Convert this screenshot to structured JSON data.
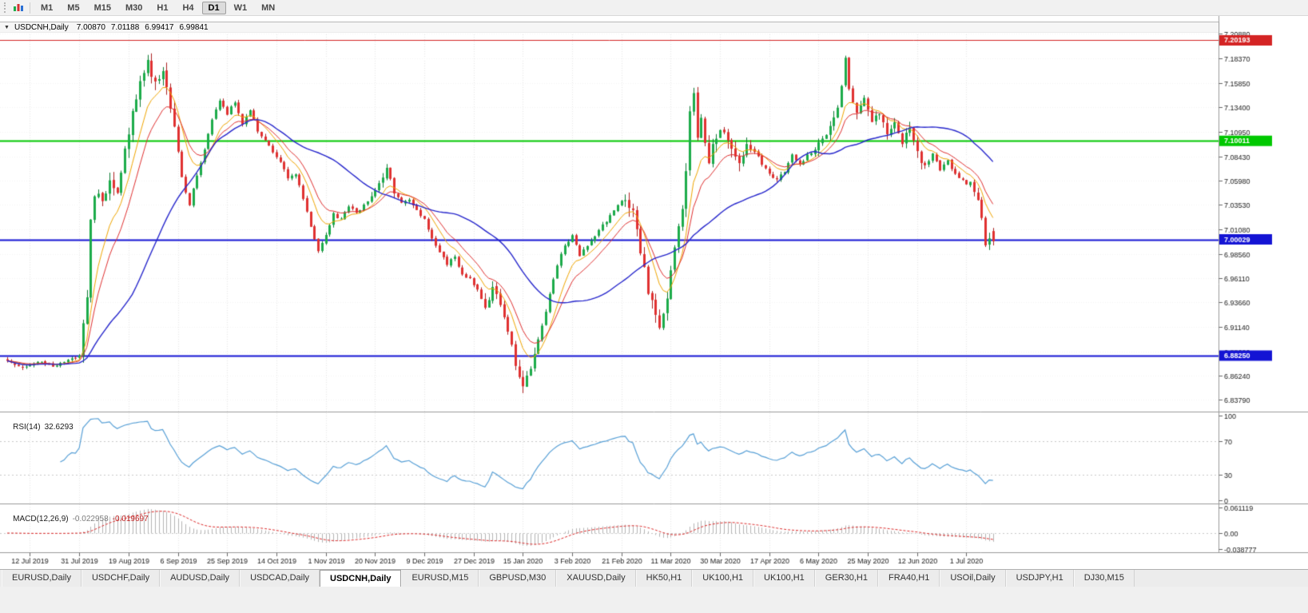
{
  "toolbar": {
    "periods": [
      {
        "label": "M1"
      },
      {
        "label": "M5"
      },
      {
        "label": "M15"
      },
      {
        "label": "M30"
      },
      {
        "label": "H1"
      },
      {
        "label": "H4"
      },
      {
        "label": "D1"
      },
      {
        "label": "W1"
      },
      {
        "label": "MN"
      }
    ],
    "active_period": "D1"
  },
  "chart": {
    "title": {
      "collapse_icon": "▼",
      "symbol": "USDCNH,Daily",
      "open": "7.00870",
      "high": "7.01188",
      "low": "6.99417",
      "close": "6.99841"
    },
    "y_axis_ticks": [
      "7.20880",
      "7.18370",
      "7.15850",
      "7.13400",
      "7.10950",
      "7.08430",
      "7.05980",
      "7.03530",
      "7.01080",
      "6.98560",
      "6.96110",
      "6.93660",
      "6.91140",
      "6.88690",
      "6.86240",
      "6.83790"
    ],
    "price_levels": [
      {
        "label": "7.20193",
        "value": 7.20193,
        "color": "#d42424",
        "width": 1
      },
      {
        "label": "7.10011",
        "value": 7.10011,
        "color": "#00c800",
        "width": 2
      },
      {
        "label": "7.00029",
        "value": 7.00029,
        "color": "#1414d4",
        "width": 2
      },
      {
        "label": "6.88250",
        "value": 6.8825,
        "color": "#1414d4",
        "width": 2
      }
    ],
    "x_axis_labels": [
      "12 Jul 2019",
      "31 Jul 2019",
      "19 Aug 2019",
      "6 Sep 2019",
      "25 Sep 2019",
      "14 Oct 2019",
      "1 Nov 2019",
      "20 Nov 2019",
      "9 Dec 2019",
      "27 Dec 2019",
      "15 Jan 2020",
      "3 Feb 2020",
      "21 Feb 2020",
      "11 Mar 2020",
      "30 Mar 2020",
      "17 Apr 2020",
      "6 May 2020",
      "25 May 2020",
      "12 Jun 2020",
      "1 Jul 2020"
    ],
    "colors": {
      "bull": "#1cab4a",
      "bull_border": "#0a7a32",
      "bear": "#e03131",
      "bear_border": "#ab1f1f",
      "ma_fast": "#f0a500",
      "ma_mid": "#e03030",
      "ma_slow": "#2626cc",
      "background": "#ffffff",
      "grid": "#e7e7e7",
      "axis_text": "#1a1a1a",
      "separator": "#9a9a9a"
    }
  },
  "rsi_panel": {
    "name": "RSI(14)",
    "value": "32.6293",
    "levels": [
      "100",
      "70",
      "30",
      "0"
    ],
    "level_values": [
      100,
      70,
      30,
      0
    ],
    "line_color": "#569fd6"
  },
  "macd_panel": {
    "name": "MACD(12,26,9)",
    "main_value": "-0.022958",
    "signal_value": "-0.019697",
    "levels": [
      "0.061119",
      "0.00",
      "-0.038777"
    ],
    "level_values": [
      0.061119,
      0,
      -0.038777
    ],
    "histogram_color": "#b4b4b4",
    "signal_color": "#dd2a2a"
  },
  "tabs": {
    "items": [
      {
        "label": "EURUSD,Daily"
      },
      {
        "label": "USDCHF,Daily"
      },
      {
        "label": "AUDUSD,Daily"
      },
      {
        "label": "USDCAD,Daily"
      },
      {
        "label": "USDCNH,Daily"
      },
      {
        "label": "EURUSD,M15"
      },
      {
        "label": "GBPUSD,M30"
      },
      {
        "label": "XAUUSD,Daily"
      },
      {
        "label": "HK50,H1"
      },
      {
        "label": "UK100,H1"
      },
      {
        "label": "UK100,H1"
      },
      {
        "label": "GER30,H1"
      },
      {
        "label": "FRA40,H1"
      },
      {
        "label": "USOil,Daily"
      },
      {
        "label": "USDJPY,H1"
      },
      {
        "label": "DJ30,M15"
      }
    ],
    "active": "USDCNH,Daily"
  },
  "chart_data": {
    "type": "candlestick",
    "symbol": "USDCNH",
    "timeframe": "Daily",
    "title": "USDCNH,Daily",
    "visible_range": {
      "price_min": 6.8379,
      "price_max": 7.2088,
      "first_label": "12 Jul 2019",
      "last_label": "1 Jul 2020"
    },
    "candle_count": 261,
    "seed": 13,
    "last_candle": {
      "open": 7.0087,
      "high": 7.01188,
      "low": 6.99417,
      "close": 6.99841
    },
    "horizontal_lines": [
      7.20193,
      7.10011,
      7.00029,
      6.8825
    ],
    "indicators": [
      {
        "type": "EMA",
        "period": 8,
        "color": "#f0a500"
      },
      {
        "type": "EMA",
        "period": 13,
        "color": "#e03030"
      },
      {
        "type": "SMA",
        "period": 34,
        "color": "#2626cc"
      },
      {
        "type": "RSI",
        "period": 14,
        "current": 32.6293,
        "scale": [
          0,
          100
        ],
        "marked_levels": [
          70,
          30
        ]
      },
      {
        "type": "MACD",
        "fast": 12,
        "slow": 26,
        "signal": 9,
        "current_main": -0.022958,
        "current_signal": -0.019697,
        "scale": [
          -0.038777,
          0.061119
        ]
      }
    ],
    "base_volatility": 0.004,
    "volatility_zones": [
      [
        20,
        44,
        0.013
      ],
      [
        96,
        102,
        0.008
      ],
      [
        126,
        140,
        0.01
      ],
      [
        163,
        196,
        0.013
      ],
      [
        214,
        242,
        0.01
      ],
      [
        253,
        259,
        0.0085
      ]
    ],
    "anchors": [
      [
        0,
        6.877
      ],
      [
        4,
        6.872
      ],
      [
        8,
        6.876
      ],
      [
        12,
        6.872
      ],
      [
        16,
        6.878
      ],
      [
        19,
        6.882
      ],
      [
        20,
        6.916
      ],
      [
        21,
        6.94
      ],
      [
        22,
        7.022
      ],
      [
        23,
        7.048
      ],
      [
        25,
        7.04
      ],
      [
        27,
        7.062
      ],
      [
        29,
        7.052
      ],
      [
        31,
        7.088
      ],
      [
        33,
        7.128
      ],
      [
        35,
        7.162
      ],
      [
        37,
        7.18
      ],
      [
        39,
        7.16
      ],
      [
        41,
        7.174
      ],
      [
        44,
        7.118
      ],
      [
        46,
        7.062
      ],
      [
        48,
        7.036
      ],
      [
        50,
        7.066
      ],
      [
        52,
        7.092
      ],
      [
        54,
        7.12
      ],
      [
        56,
        7.142
      ],
      [
        58,
        7.128
      ],
      [
        60,
        7.14
      ],
      [
        62,
        7.118
      ],
      [
        64,
        7.13
      ],
      [
        66,
        7.11
      ],
      [
        68,
        7.1
      ],
      [
        70,
        7.088
      ],
      [
        72,
        7.078
      ],
      [
        74,
        7.062
      ],
      [
        76,
        7.066
      ],
      [
        78,
        7.042
      ],
      [
        80,
        7.014
      ],
      [
        82,
        6.988
      ],
      [
        84,
        7.006
      ],
      [
        86,
        7.026
      ],
      [
        88,
        7.02
      ],
      [
        90,
        7.034
      ],
      [
        92,
        7.026
      ],
      [
        94,
        7.036
      ],
      [
        96,
        7.044
      ],
      [
        98,
        7.058
      ],
      [
        100,
        7.072
      ],
      [
        102,
        7.048
      ],
      [
        104,
        7.036
      ],
      [
        106,
        7.042
      ],
      [
        108,
        7.03
      ],
      [
        110,
        7.02
      ],
      [
        112,
        7.0
      ],
      [
        114,
        6.986
      ],
      [
        116,
        6.976
      ],
      [
        118,
        6.982
      ],
      [
        120,
        6.966
      ],
      [
        122,
        6.96
      ],
      [
        124,
        6.95
      ],
      [
        126,
        6.932
      ],
      [
        128,
        6.952
      ],
      [
        130,
        6.93
      ],
      [
        132,
        6.906
      ],
      [
        134,
        6.876
      ],
      [
        136,
        6.85
      ],
      [
        137,
        6.86
      ],
      [
        139,
        6.884
      ],
      [
        141,
        6.912
      ],
      [
        143,
        6.944
      ],
      [
        145,
        6.974
      ],
      [
        147,
        6.994
      ],
      [
        149,
        7.004
      ],
      [
        151,
        6.984
      ],
      [
        153,
        6.994
      ],
      [
        155,
        7.004
      ],
      [
        157,
        7.014
      ],
      [
        159,
        7.024
      ],
      [
        161,
        7.034
      ],
      [
        163,
        7.044
      ],
      [
        165,
        7.028
      ],
      [
        167,
        6.99
      ],
      [
        169,
        6.95
      ],
      [
        171,
        6.92
      ],
      [
        172,
        6.91
      ],
      [
        174,
        6.944
      ],
      [
        176,
        6.988
      ],
      [
        178,
        7.03
      ],
      [
        179,
        7.072
      ],
      [
        180,
        7.13
      ],
      [
        181,
        7.152
      ],
      [
        182,
        7.102
      ],
      [
        183,
        7.122
      ],
      [
        185,
        7.082
      ],
      [
        187,
        7.102
      ],
      [
        189,
        7.112
      ],
      [
        191,
        7.09
      ],
      [
        193,
        7.08
      ],
      [
        195,
        7.096
      ],
      [
        197,
        7.09
      ],
      [
        199,
        7.076
      ],
      [
        201,
        7.066
      ],
      [
        203,
        7.06
      ],
      [
        205,
        7.07
      ],
      [
        207,
        7.086
      ],
      [
        209,
        7.076
      ],
      [
        211,
        7.086
      ],
      [
        213,
        7.092
      ],
      [
        215,
        7.104
      ],
      [
        217,
        7.114
      ],
      [
        219,
        7.136
      ],
      [
        220,
        7.156
      ],
      [
        221,
        7.186
      ],
      [
        222,
        7.156
      ],
      [
        224,
        7.126
      ],
      [
        226,
        7.14
      ],
      [
        228,
        7.116
      ],
      [
        230,
        7.13
      ],
      [
        232,
        7.11
      ],
      [
        234,
        7.12
      ],
      [
        236,
        7.1
      ],
      [
        238,
        7.11
      ],
      [
        240,
        7.086
      ],
      [
        242,
        7.076
      ],
      [
        244,
        7.086
      ],
      [
        246,
        7.07
      ],
      [
        248,
        7.08
      ],
      [
        250,
        7.066
      ],
      [
        252,
        7.06
      ],
      [
        254,
        7.056
      ],
      [
        256,
        7.04
      ],
      [
        257,
        7.02
      ],
      [
        258,
        6.996
      ],
      [
        259,
        7.002
      ],
      [
        260,
        6.9984
      ]
    ]
  }
}
